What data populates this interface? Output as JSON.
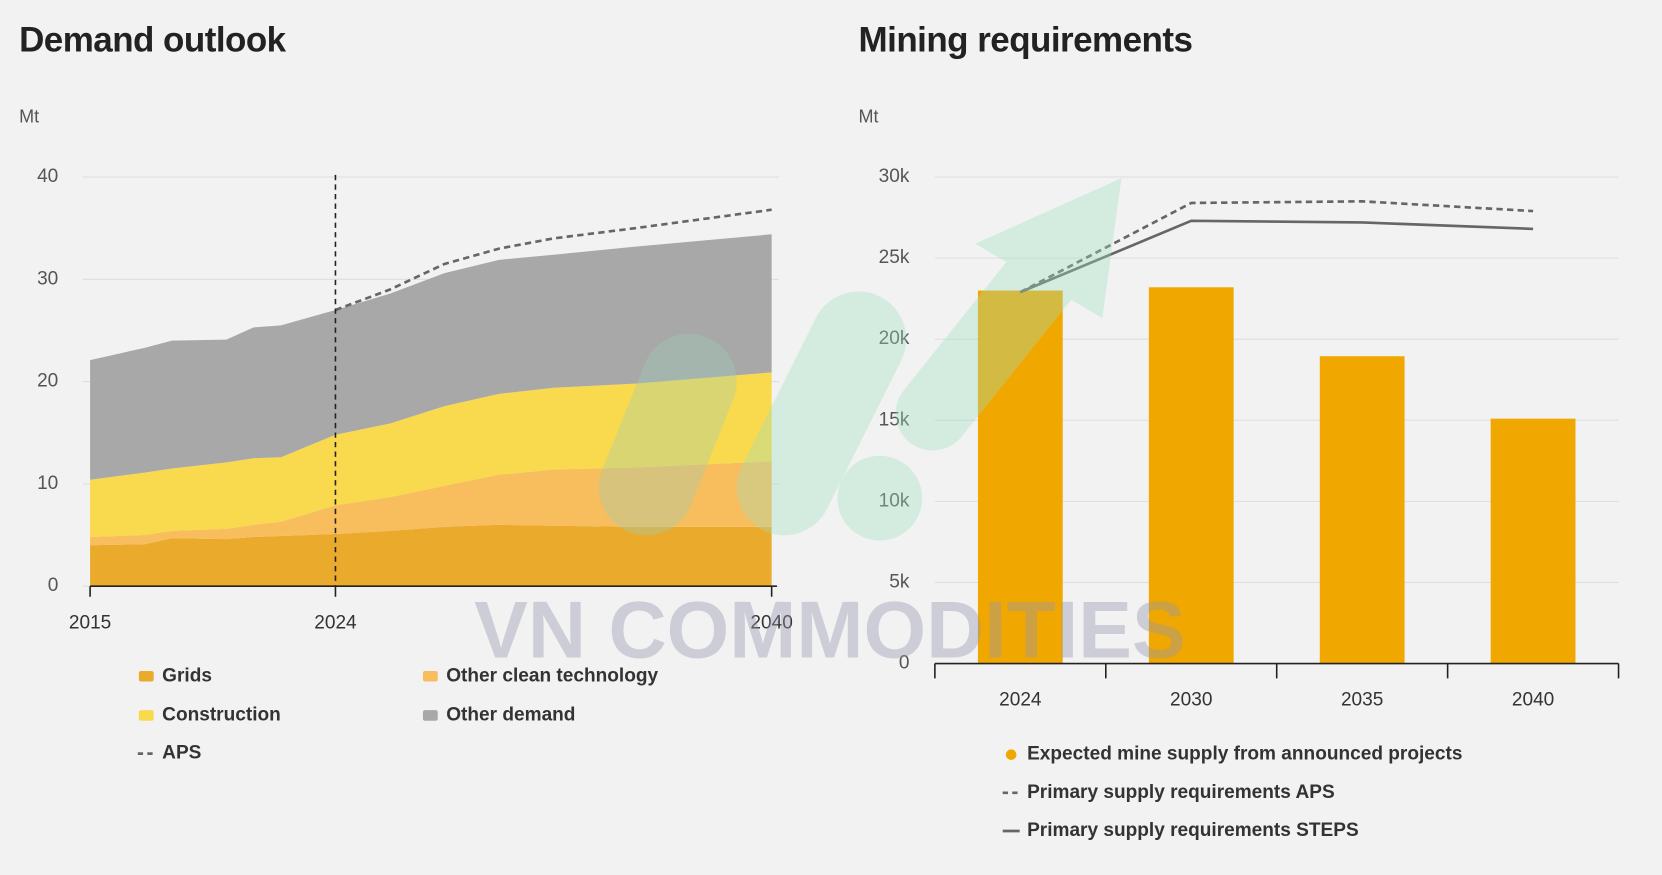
{
  "watermark": "VN COMMODITIES",
  "chart_data": [
    {
      "type": "area",
      "title": "Demand outlook",
      "y_label": "Mt",
      "stacked": true,
      "x": [
        2015,
        2017,
        2018,
        2020,
        2021,
        2022,
        2024,
        2026,
        2028,
        2030,
        2032,
        2035,
        2040
      ],
      "xlim": [
        2015,
        2040
      ],
      "xticks": [
        2015,
        2024,
        2040
      ],
      "ylim": [
        0,
        40
      ],
      "yticks": [
        0,
        10,
        20,
        30,
        40
      ],
      "grid": true,
      "vline": 2024,
      "series": [
        {
          "name": "Grids",
          "type": "area",
          "color": "#eaaa2c",
          "values": [
            4.0,
            4.1,
            4.7,
            4.6,
            4.8,
            4.9,
            5.1,
            5.4,
            5.8,
            6.0,
            5.9,
            5.8,
            5.8
          ]
        },
        {
          "name": "Other clean technology",
          "type": "area",
          "color": "#f8bd5c",
          "values": [
            0.8,
            0.9,
            0.7,
            1.0,
            1.2,
            1.4,
            2.8,
            3.3,
            4.0,
            4.9,
            5.5,
            5.8,
            6.4
          ]
        },
        {
          "name": "Construction",
          "type": "area",
          "color": "#f9d94e",
          "values": [
            5.6,
            6.1,
            6.1,
            6.5,
            6.5,
            6.3,
            6.9,
            7.2,
            7.8,
            7.9,
            8.0,
            8.2,
            8.7
          ]
        },
        {
          "name": "Other demand",
          "type": "area",
          "color": "#a8a8a8",
          "values": [
            11.7,
            12.2,
            12.5,
            12.0,
            12.8,
            12.9,
            12.2,
            12.7,
            13.0,
            13.1,
            13.0,
            13.4,
            13.5
          ]
        },
        {
          "name": "APS",
          "type": "line",
          "dashed": true,
          "color": "#666666",
          "values": [
            null,
            null,
            null,
            null,
            null,
            null,
            27.0,
            29.0,
            31.5,
            33.0,
            34.0,
            35.0,
            36.8
          ]
        }
      ]
    },
    {
      "type": "bar",
      "title": "Mining requirements",
      "y_label": "Mt",
      "categories": [
        "2024",
        "2030",
        "2035",
        "2040"
      ],
      "ylim": [
        0,
        30000
      ],
      "yticks": [
        0,
        {
          "value": 5000,
          "label": "5k"
        },
        {
          "value": 10000,
          "label": "10k"
        },
        {
          "value": 15000,
          "label": "15k"
        },
        {
          "value": 20000,
          "label": "20k"
        },
        {
          "value": 25000,
          "label": "25k"
        },
        {
          "value": 30000,
          "label": "30k"
        }
      ],
      "grid": true,
      "series": [
        {
          "name": "Expected mine supply from announced projects",
          "type": "bar",
          "color": "#f0a800",
          "values": [
            23000,
            23200,
            18950,
            15100
          ]
        },
        {
          "name": "Primary supply requirements APS",
          "type": "line",
          "dashed": true,
          "color": "#666666",
          "values": [
            22900,
            28400,
            28500,
            27900
          ]
        },
        {
          "name": "Primary supply requirements STEPS",
          "type": "line",
          "dashed": false,
          "color": "#666666",
          "values": [
            22900,
            27300,
            27200,
            26800
          ]
        }
      ]
    }
  ]
}
